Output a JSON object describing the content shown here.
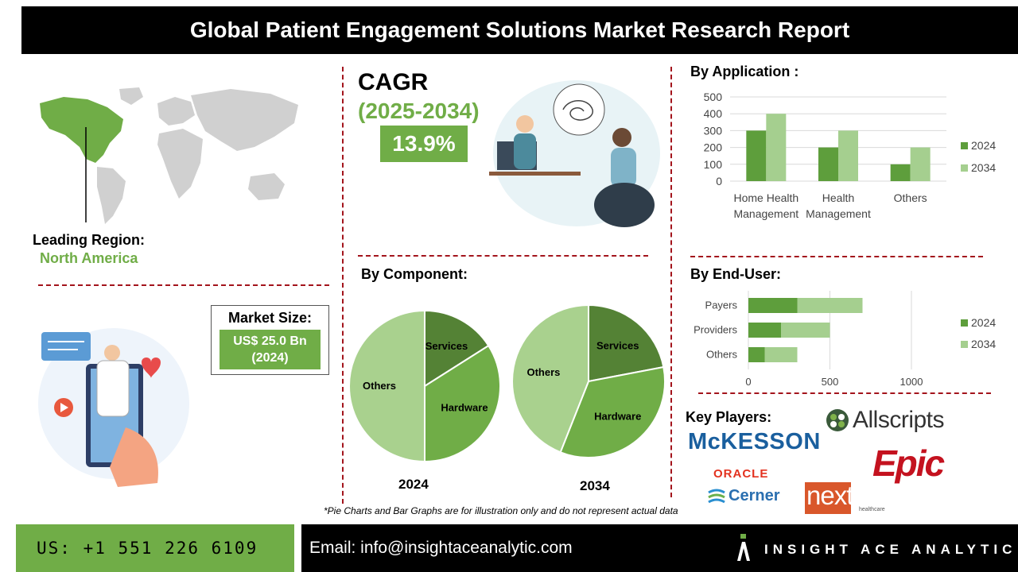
{
  "header": {
    "title": "Global Patient Engagement Solutions Market Research Report"
  },
  "region": {
    "label": "Leading Region:",
    "value": "North America"
  },
  "cagr": {
    "title": "CAGR",
    "years": "(2025-2034)",
    "value": "13.9%"
  },
  "market_size": {
    "label": "Market Size:",
    "value": "US$ 25.0 Bn",
    "year": "(2024)"
  },
  "sections": {
    "application": "By Application :",
    "component": "By Component:",
    "end_user": "By  End-User:",
    "key_players": "Key Players:"
  },
  "key_players": [
    "Allscripts",
    "McKESSON",
    "Epic",
    "ORACLE",
    "Cerner",
    "nextgen",
    "healthcare"
  ],
  "footnote": "*Pie Charts and Bar Graphs are for illustration only and do not represent actual data",
  "footer": {
    "phone": "US: +1 551 226 6109",
    "email": "Email: info@insightaceanalytic.com",
    "brand": "INSIGHT ACE ANALYTIC"
  },
  "colors": {
    "series_2024": "#5e9e3c",
    "series_2034": "#a5cf8f",
    "accent": "#70ad47",
    "dash": "#a3141c"
  },
  "chart_data": [
    {
      "type": "bar",
      "title": "By Application :",
      "categories": [
        "Home Health Management",
        "Health Management",
        "Others"
      ],
      "category_lines": [
        [
          "Home Health",
          "Management"
        ],
        [
          "Health",
          "Management"
        ],
        [
          "Others"
        ]
      ],
      "series": [
        {
          "name": "2024",
          "values": [
            300,
            200,
            100
          ]
        },
        {
          "name": "2034",
          "values": [
            400,
            300,
            200
          ]
        }
      ],
      "ylim": [
        0,
        500
      ],
      "yticks": [
        0,
        100,
        200,
        300,
        400,
        500
      ],
      "grid": true,
      "legend": "right"
    },
    {
      "type": "bar",
      "orientation": "horizontal",
      "title": "By  End-User:",
      "categories": [
        "Payers",
        "Providers",
        "Others"
      ],
      "series": [
        {
          "name": "2024",
          "values": [
            300,
            200,
            100
          ]
        },
        {
          "name": "2034",
          "values": [
            400,
            300,
            200
          ]
        }
      ],
      "xlim": [
        0,
        1000
      ],
      "xticks": [
        0,
        500,
        1000
      ],
      "stacked": true,
      "grid": true,
      "legend": "right"
    },
    {
      "type": "pie",
      "title": "By Component:",
      "label": "2024",
      "slices": [
        {
          "name": "Services",
          "value": 16
        },
        {
          "name": "Hardware",
          "value": 34
        },
        {
          "name": "Others",
          "value": 50
        }
      ]
    },
    {
      "type": "pie",
      "label": "2034",
      "slices": [
        {
          "name": "Services",
          "value": 22
        },
        {
          "name": "Hardware",
          "value": 34
        },
        {
          "name": "Others",
          "value": 44
        }
      ]
    }
  ]
}
